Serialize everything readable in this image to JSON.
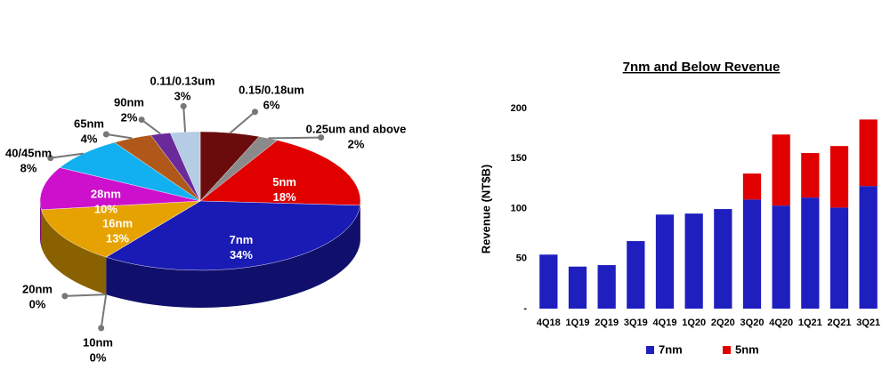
{
  "chart_data": [
    {
      "type": "pie",
      "categories": [
        "0.15/0.18um",
        "0.25um and above",
        "5nm",
        "7nm",
        "10nm",
        "20nm",
        "16nm",
        "28nm",
        "40/45nm",
        "65nm",
        "90nm",
        "0.11/0.13um"
      ],
      "values": [
        6,
        2,
        18,
        34,
        0,
        0,
        13,
        10,
        8,
        4,
        2,
        3
      ],
      "value_labels": [
        "6%",
        "2%",
        "18%",
        "34%",
        "0%",
        "0%",
        "13%",
        "10%",
        "8%",
        "4%",
        "2%",
        "3%"
      ],
      "colors": [
        "#6b0c0c",
        "#8a8a8a",
        "#e00000",
        "#1a1ab4",
        "#333333",
        "#aaaaaa",
        "#e6a200",
        "#cc10cc",
        "#12b0f0",
        "#b0581a",
        "#6a2a9a",
        "#b4cce4"
      ]
    },
    {
      "type": "bar",
      "title": "7nm and Below Revenue",
      "y_label": "Revenue (NT$B)",
      "categories": [
        "4Q18",
        "1Q19",
        "2Q19",
        "3Q19",
        "4Q19",
        "1Q20",
        "2Q20",
        "3Q20",
        "4Q20",
        "1Q21",
        "2Q21",
        "3Q21"
      ],
      "series": [
        {
          "name": "7nm",
          "color": "#1f1fc0",
          "values": [
            54,
            42,
            43.5,
            67.5,
            94,
            95,
            99.5,
            109,
            103,
            111,
            101,
            122.5
          ]
        },
        {
          "name": "5nm",
          "color": "#e00000",
          "values": [
            0,
            0,
            0,
            0,
            0,
            0,
            0,
            26,
            71,
            44.5,
            61.5,
            66.5
          ]
        }
      ],
      "stacked": true,
      "ylim": [
        0,
        200
      ],
      "yticks": [
        {
          "value": 0,
          "label": "-"
        },
        50,
        100,
        150,
        200
      ],
      "legend": "bottom"
    }
  ]
}
